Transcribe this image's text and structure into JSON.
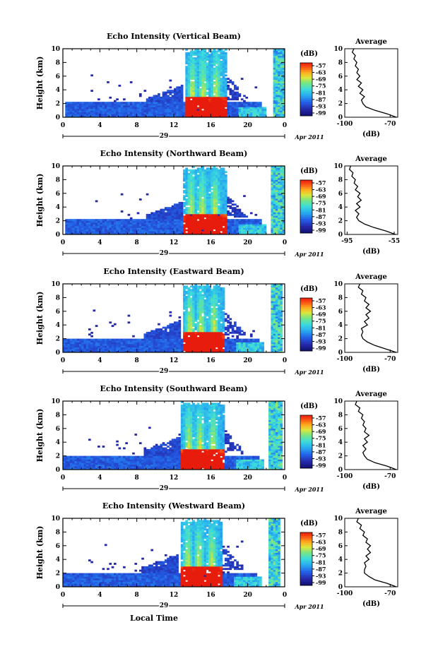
{
  "common": {
    "ylabel": "Height (km)",
    "xlabel": "Local Time",
    "date_label": "Apr 2011",
    "colorbar_unit": "(dB)",
    "colorbar_ticks": [
      "-57",
      "-63",
      "-69",
      "-75",
      "-81",
      "-87",
      "-93",
      "-99"
    ],
    "xticks": [
      "0",
      "4",
      "8",
      "12",
      "16",
      "20",
      "0"
    ],
    "yticks": [
      "0",
      "2",
      "4",
      "6",
      "8",
      "10"
    ],
    "avg_title": "Average",
    "avg_xlabel": "(dB)",
    "day_label": "29"
  },
  "chart_data": [
    {
      "type": "heatmap",
      "title": "Echo Intensity (Vertical Beam)",
      "x_range_hours": [
        0,
        24
      ],
      "ylim": [
        0,
        10
      ],
      "zlim": [
        -99,
        -57
      ],
      "average": {
        "type": "line",
        "xticks": [
          "-100",
          "-70"
        ],
        "xlim": [
          -100,
          -65
        ],
        "ylim": [
          0,
          10
        ],
        "profile": [
          [
            -66,
            0
          ],
          [
            -72,
            0.5
          ],
          [
            -80,
            1
          ],
          [
            -86,
            1.5
          ],
          [
            -88,
            2
          ],
          [
            -89,
            2.5
          ],
          [
            -87,
            3
          ],
          [
            -90,
            3.5
          ],
          [
            -88,
            4
          ],
          [
            -91,
            4.5
          ],
          [
            -89,
            5
          ],
          [
            -92,
            5.5
          ],
          [
            -90,
            6
          ],
          [
            -92,
            6.5
          ],
          [
            -91,
            7
          ],
          [
            -93,
            7.5
          ],
          [
            -92,
            8
          ],
          [
            -94,
            8.5
          ],
          [
            -93,
            9
          ],
          [
            -95,
            9.5
          ],
          [
            -94,
            10
          ]
        ]
      }
    },
    {
      "type": "heatmap",
      "title": "Echo Intensity (Northward Beam)",
      "x_range_hours": [
        0,
        24
      ],
      "ylim": [
        0,
        10
      ],
      "zlim": [
        -99,
        -57
      ],
      "average": {
        "type": "line",
        "xticks": [
          "-95",
          "-55"
        ],
        "xlim": [
          -97,
          -52
        ],
        "ylim": [
          0,
          10
        ],
        "profile": [
          [
            -54,
            0
          ],
          [
            -62,
            0.5
          ],
          [
            -72,
            1
          ],
          [
            -80,
            1.5
          ],
          [
            -85,
            2
          ],
          [
            -87,
            2.5
          ],
          [
            -85,
            3
          ],
          [
            -88,
            3.5
          ],
          [
            -84,
            4
          ],
          [
            -87,
            4.5
          ],
          [
            -83,
            5
          ],
          [
            -86,
            5.5
          ],
          [
            -84,
            6
          ],
          [
            -88,
            6.5
          ],
          [
            -86,
            7
          ],
          [
            -89,
            7.5
          ],
          [
            -88,
            8
          ],
          [
            -91,
            8.5
          ],
          [
            -90,
            9
          ],
          [
            -93,
            9.5
          ],
          [
            -92,
            10
          ]
        ]
      }
    },
    {
      "type": "heatmap",
      "title": "Echo Intensity (Eastward Beam)",
      "x_range_hours": [
        0,
        24
      ],
      "ylim": [
        0,
        10
      ],
      "zlim": [
        -99,
        -57
      ],
      "average": {
        "type": "line",
        "xticks": [
          "-100",
          "-70"
        ],
        "xlim": [
          -100,
          -65
        ],
        "ylim": [
          0,
          10
        ],
        "profile": [
          [
            -66,
            0
          ],
          [
            -73,
            0.5
          ],
          [
            -80,
            1
          ],
          [
            -85,
            1.5
          ],
          [
            -88,
            2
          ],
          [
            -89,
            2.5
          ],
          [
            -88,
            3
          ],
          [
            -89,
            3.5
          ],
          [
            -85,
            4
          ],
          [
            -87,
            4.5
          ],
          [
            -84,
            5
          ],
          [
            -86,
            5.5
          ],
          [
            -83,
            6
          ],
          [
            -86,
            6.5
          ],
          [
            -84,
            7
          ],
          [
            -87,
            7.5
          ],
          [
            -86,
            8
          ],
          [
            -89,
            8.5
          ],
          [
            -88,
            9
          ],
          [
            -91,
            9.5
          ],
          [
            -90,
            10
          ]
        ]
      }
    },
    {
      "type": "heatmap",
      "title": "Echo Intensity (Southward Beam)",
      "x_range_hours": [
        0,
        24
      ],
      "ylim": [
        0,
        10
      ],
      "zlim": [
        -99,
        -57
      ],
      "average": {
        "type": "line",
        "xticks": [
          "-100",
          "-70"
        ],
        "xlim": [
          -100,
          -65
        ],
        "ylim": [
          0,
          10
        ],
        "profile": [
          [
            -66,
            0
          ],
          [
            -72,
            0.5
          ],
          [
            -80,
            1
          ],
          [
            -85,
            1.5
          ],
          [
            -87,
            2
          ],
          [
            -88,
            2.5
          ],
          [
            -86,
            3
          ],
          [
            -88,
            3.5
          ],
          [
            -85,
            4
          ],
          [
            -87,
            4.5
          ],
          [
            -84,
            5
          ],
          [
            -87,
            5.5
          ],
          [
            -86,
            6
          ],
          [
            -88,
            6.5
          ],
          [
            -87,
            7
          ],
          [
            -89,
            7.5
          ],
          [
            -88,
            8
          ],
          [
            -91,
            8.5
          ],
          [
            -90,
            9
          ],
          [
            -93,
            9.5
          ],
          [
            -92,
            10
          ]
        ]
      }
    },
    {
      "type": "heatmap",
      "title": "Echo Intensity (Westward Beam)",
      "x_range_hours": [
        0,
        24
      ],
      "ylim": [
        0,
        10
      ],
      "zlim": [
        -99,
        -57
      ],
      "average": {
        "type": "line",
        "xticks": [
          "-100",
          "-70"
        ],
        "xlim": [
          -100,
          -65
        ],
        "ylim": [
          0,
          10
        ],
        "profile": [
          [
            -66,
            0
          ],
          [
            -72,
            0.5
          ],
          [
            -80,
            1
          ],
          [
            -84,
            1.5
          ],
          [
            -87,
            2
          ],
          [
            -87,
            2.5
          ],
          [
            -86,
            3
          ],
          [
            -87,
            3.5
          ],
          [
            -84,
            4
          ],
          [
            -86,
            4.5
          ],
          [
            -83,
            5
          ],
          [
            -85,
            5.5
          ],
          [
            -83,
            6
          ],
          [
            -86,
            6.5
          ],
          [
            -85,
            7
          ],
          [
            -88,
            7.5
          ],
          [
            -87,
            8
          ],
          [
            -90,
            8.5
          ],
          [
            -89,
            9
          ],
          [
            -92,
            9.5
          ],
          [
            -91,
            10
          ]
        ]
      }
    }
  ]
}
